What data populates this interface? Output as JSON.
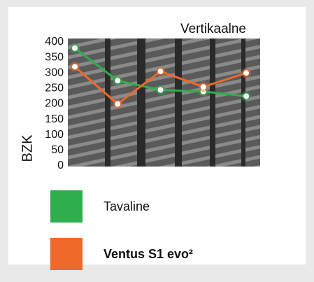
{
  "chart_data": {
    "type": "line",
    "title": "Vertikaalne",
    "y_label": "BZK",
    "categories": [
      null,
      null,
      null,
      null,
      null
    ],
    "series": [
      {
        "name": "Tavaline",
        "color": "#2fae4e",
        "values": [
          380,
          275,
          245,
          240,
          225
        ]
      },
      {
        "name": "Ventus S1 evo²",
        "color": "#ee6a2b",
        "values": [
          320,
          200,
          305,
          255,
          300
        ]
      }
    ],
    "ylim": [
      0,
      400
    ],
    "yticks": [
      0,
      50,
      100,
      150,
      200,
      250,
      300,
      350,
      400
    ]
  }
}
